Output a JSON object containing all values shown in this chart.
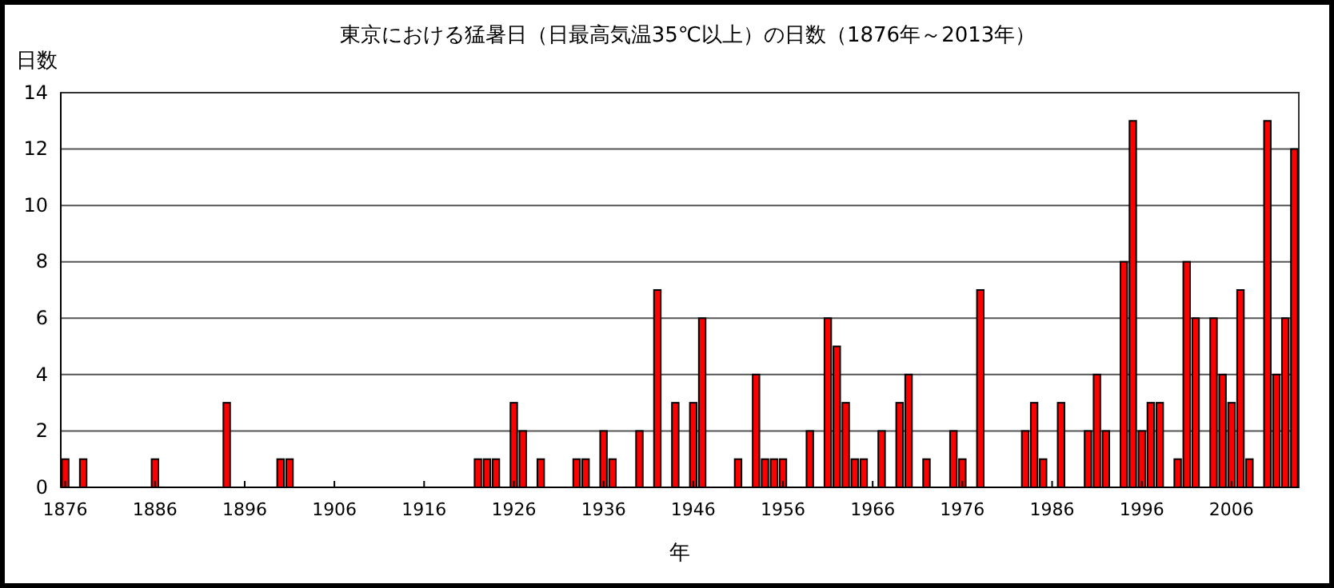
{
  "chart_data": {
    "type": "bar",
    "title": "東京における猛暑日（日最高気温35℃以上）の日数（1876年～2013年）",
    "xlabel": "年",
    "ylabel": "日数",
    "x": [
      1876,
      1878,
      1886,
      1894,
      1900,
      1901,
      1922,
      1923,
      1924,
      1926,
      1927,
      1929,
      1933,
      1934,
      1936,
      1937,
      1940,
      1942,
      1944,
      1946,
      1947,
      1951,
      1953,
      1954,
      1955,
      1956,
      1959,
      1961,
      1962,
      1963,
      1964,
      1965,
      1967,
      1969,
      1970,
      1972,
      1975,
      1976,
      1978,
      1983,
      1984,
      1985,
      1987,
      1990,
      1991,
      1992,
      1994,
      1995,
      1996,
      1997,
      1998,
      2000,
      2001,
      2002,
      2004,
      2005,
      2006,
      2007,
      2008,
      2010,
      2011,
      2012,
      2013
    ],
    "values": [
      1,
      1,
      1,
      3,
      1,
      1,
      1,
      1,
      1,
      3,
      2,
      1,
      1,
      1,
      2,
      1,
      2,
      7,
      3,
      3,
      6,
      1,
      4,
      1,
      1,
      1,
      2,
      6,
      5,
      3,
      1,
      1,
      2,
      3,
      4,
      1,
      2,
      1,
      7,
      2,
      3,
      1,
      3,
      2,
      4,
      2,
      8,
      13,
      2,
      3,
      3,
      1,
      8,
      6,
      6,
      4,
      3,
      7,
      1,
      13,
      4,
      6,
      12
    ],
    "color": "#ff0000",
    "xlim": [
      1875.5,
      2013.5
    ],
    "xticks": [
      1876,
      1886,
      1896,
      1906,
      1916,
      1926,
      1936,
      1946,
      1956,
      1966,
      1976,
      1986,
      1996,
      2006
    ],
    "ylim": [
      0,
      14
    ],
    "yticks": [
      0,
      2,
      4,
      6,
      8,
      10,
      12,
      14
    ],
    "grid": "y"
  }
}
